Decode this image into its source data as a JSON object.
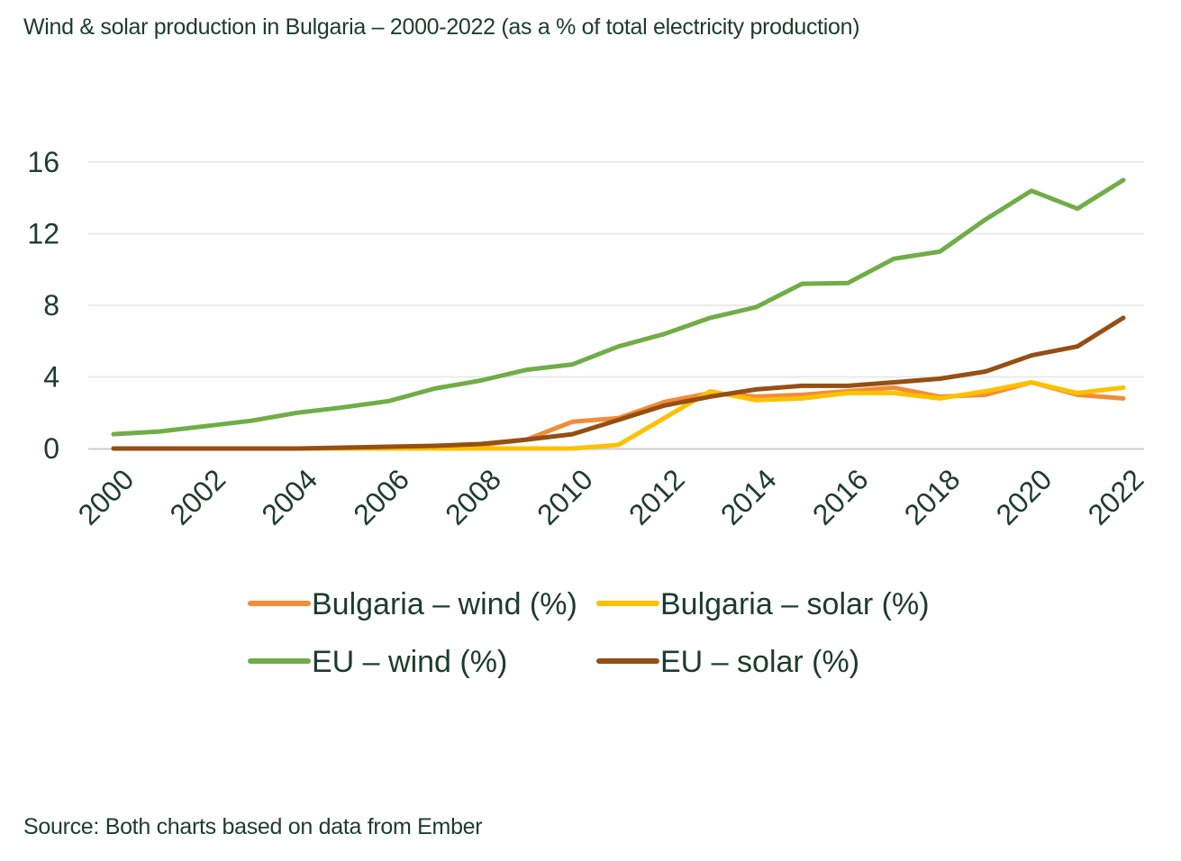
{
  "title": "Wind & solar production in Bulgaria – 2000-2022 (as a % of total electricity production)",
  "source": "Source: Both charts based on data from Ember",
  "colors": {
    "text": "#1d3b2f",
    "grid": "#e6e6e6",
    "axis": "#cccccc"
  },
  "chart_data": {
    "type": "line",
    "x": [
      2000,
      2001,
      2002,
      2003,
      2004,
      2005,
      2006,
      2007,
      2008,
      2009,
      2010,
      2011,
      2012,
      2013,
      2014,
      2015,
      2016,
      2017,
      2018,
      2019,
      2020,
      2021,
      2022
    ],
    "x_tick_labels": [
      "2000",
      "2002",
      "2004",
      "2006",
      "2008",
      "2010",
      "2012",
      "2014",
      "2016",
      "2018",
      "2020",
      "2022"
    ],
    "y_ticks": [
      0,
      4,
      8,
      12,
      16
    ],
    "ylim": [
      0,
      16
    ],
    "grid": true,
    "legend_position": "bottom",
    "series": [
      {
        "name": "Bulgaria – wind (%)",
        "color": "#f28c38",
        "values": [
          0,
          0,
          0,
          0,
          0,
          0,
          0,
          0.05,
          0.2,
          0.5,
          1.5,
          1.7,
          2.6,
          3.1,
          2.9,
          3.0,
          3.2,
          3.4,
          2.9,
          3.0,
          3.7,
          3.0,
          2.8
        ]
      },
      {
        "name": "Bulgaria – solar (%)",
        "color": "#ffc000",
        "values": [
          0,
          0,
          0,
          0,
          0,
          0,
          0,
          0,
          0,
          0,
          0,
          0.2,
          1.7,
          3.2,
          2.7,
          2.8,
          3.1,
          3.1,
          2.8,
          3.2,
          3.7,
          3.1,
          3.4
        ]
      },
      {
        "name": "EU – wind (%)",
        "color": "#70ad47",
        "values": [
          0.8,
          0.95,
          1.25,
          1.55,
          2.0,
          2.3,
          2.65,
          3.35,
          3.8,
          4.4,
          4.7,
          5.7,
          6.4,
          7.3,
          7.9,
          9.2,
          9.25,
          10.6,
          11.0,
          12.8,
          14.4,
          13.4,
          15.0
        ]
      },
      {
        "name": "EU – solar (%)",
        "color": "#954f14",
        "values": [
          0,
          0,
          0,
          0,
          0,
          0.05,
          0.1,
          0.15,
          0.25,
          0.5,
          0.8,
          1.6,
          2.4,
          2.9,
          3.3,
          3.5,
          3.5,
          3.7,
          3.9,
          4.3,
          5.2,
          5.7,
          7.3
        ]
      }
    ]
  }
}
